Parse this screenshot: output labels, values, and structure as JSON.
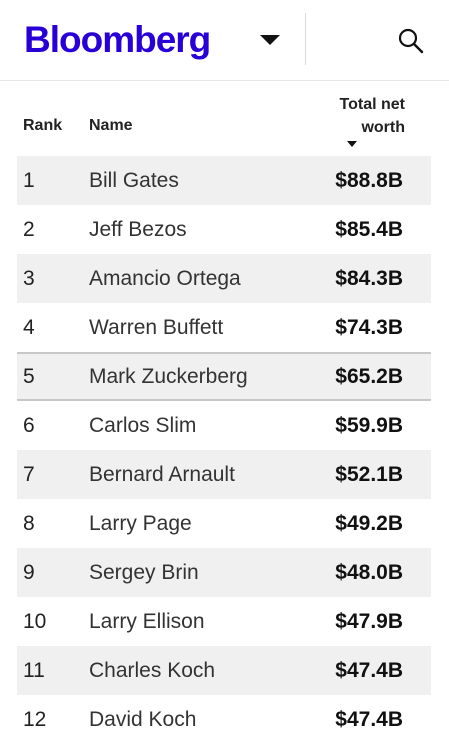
{
  "header": {
    "logo": "Bloomberg",
    "icons": {
      "dropdown": "chevron-down-icon",
      "search": "search-icon"
    }
  },
  "table": {
    "columns": {
      "rank": "Rank",
      "name": "Name",
      "worth_line1": "Total net",
      "worth_line2": "worth"
    },
    "rows": [
      {
        "rank": "1",
        "name": "Bill Gates",
        "worth": "$88.8B"
      },
      {
        "rank": "2",
        "name": "Jeff Bezos",
        "worth": "$85.4B"
      },
      {
        "rank": "3",
        "name": "Amancio Ortega",
        "worth": "$84.3B"
      },
      {
        "rank": "4",
        "name": "Warren Buffett",
        "worth": "$74.3B"
      },
      {
        "rank": "5",
        "name": "Mark Zuckerberg",
        "worth": "$65.2B"
      },
      {
        "rank": "6",
        "name": "Carlos Slim",
        "worth": "$59.9B"
      },
      {
        "rank": "7",
        "name": "Bernard Arnault",
        "worth": "$52.1B"
      },
      {
        "rank": "8",
        "name": "Larry Page",
        "worth": "$49.2B"
      },
      {
        "rank": "9",
        "name": "Sergey Brin",
        "worth": "$48.0B"
      },
      {
        "rank": "10",
        "name": "Larry Ellison",
        "worth": "$47.9B"
      },
      {
        "rank": "11",
        "name": "Charles Koch",
        "worth": "$47.4B"
      },
      {
        "rank": "12",
        "name": "David Koch",
        "worth": "$47.4B"
      }
    ]
  },
  "colors": {
    "brand": "#2800d7",
    "row_shade": "#f0f0f0"
  }
}
